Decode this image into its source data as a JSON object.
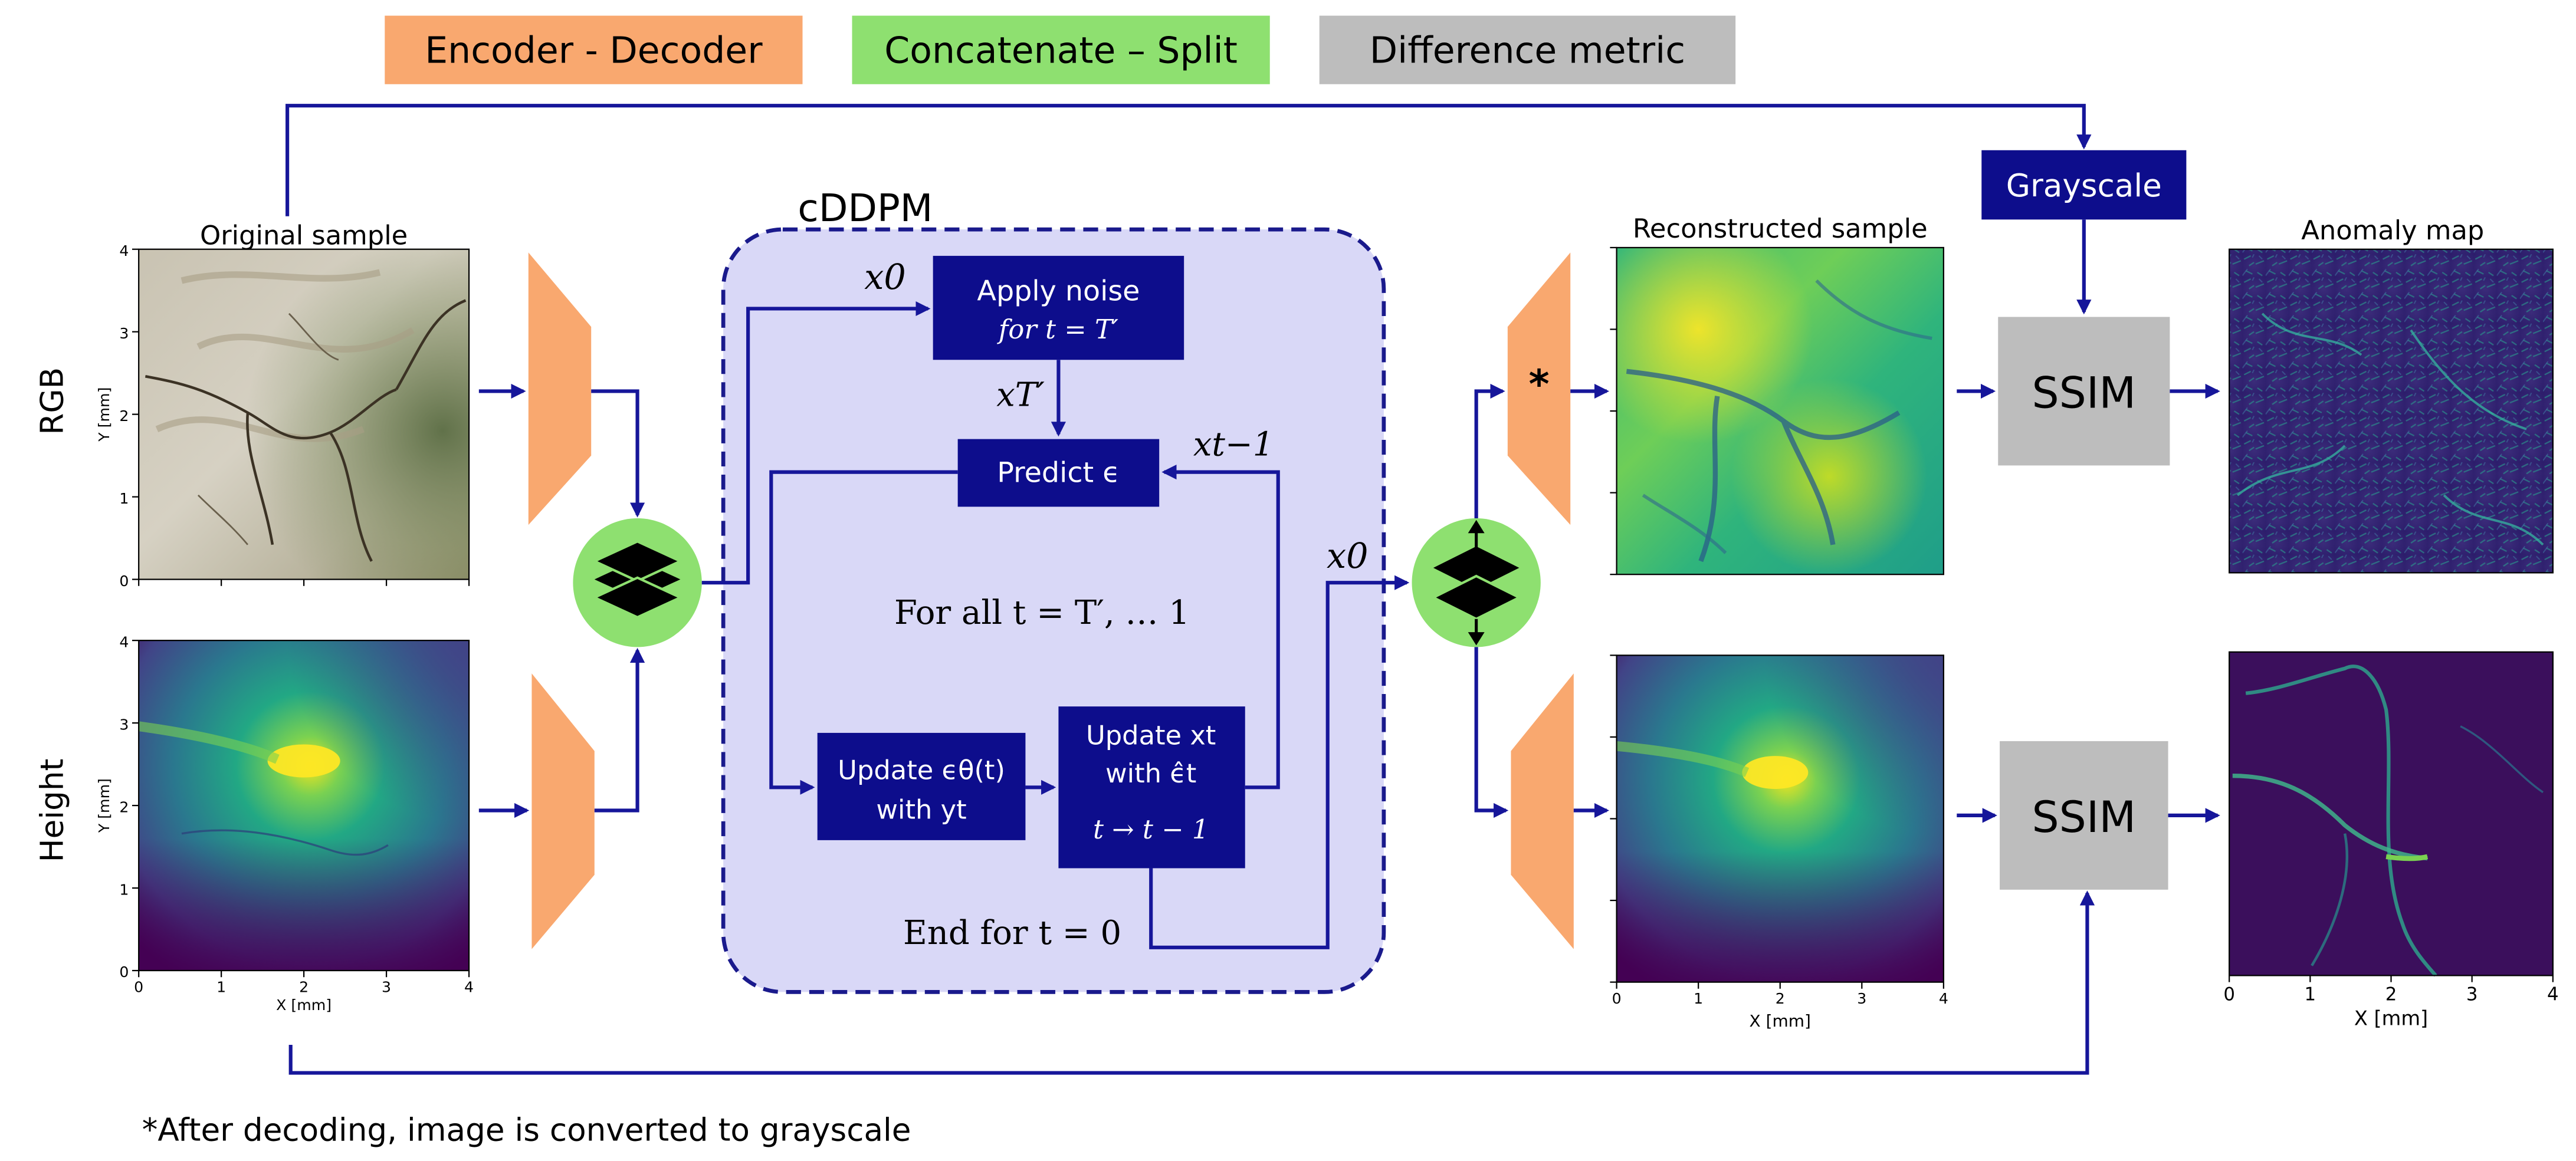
{
  "legend": {
    "encoder_decoder": "Encoder - Decoder",
    "concatenate_split": "Concatenate – Split",
    "difference_metric": "Difference metric"
  },
  "colors": {
    "encoder": "#F9A86F",
    "concat": "#8EE070",
    "metric": "#BDBDBD",
    "navy": "#0D0D8C",
    "arrow": "#16169A",
    "cddpm_fill": "#D9D8F7",
    "cddpm_border": "#1A1A8C"
  },
  "rows": {
    "rgb": "RGB",
    "height": "Height"
  },
  "panels": {
    "original": {
      "title": "Original sample",
      "ylabel": "Y [mm]",
      "xlabel": "X [mm]",
      "yticks": [
        "4",
        "3",
        "2",
        "1",
        "0"
      ],
      "xticks": [
        "0",
        "1",
        "2",
        "3",
        "4"
      ]
    },
    "reconstructed": {
      "title": "Reconstructed sample",
      "xlabel": "X [mm]",
      "xticks": [
        "0",
        "1",
        "2",
        "3",
        "4"
      ]
    },
    "anomaly": {
      "title": "Anomaly map",
      "xlabel": "X [mm]",
      "xticks": [
        "0",
        "1",
        "2",
        "3",
        "4"
      ]
    }
  },
  "cddpm": {
    "title": "cDDPM",
    "apply_noise_l1": "Apply noise",
    "apply_noise_l2": "for t = T′",
    "predict": "Predict ϵ",
    "loop": "For all t = T′, … 1",
    "update_eps_l1": "Update ϵθ(t)",
    "update_eps_l2": "with yt",
    "update_x_l1": "Update xt",
    "update_x_l2": "with ϵ̂t",
    "update_x_l3": "t → t − 1",
    "end_for": "End for t = 0",
    "x0_in": "x0",
    "xT_prime": "xT′",
    "x_t_minus_1": "xt−1",
    "x0_out": "x0"
  },
  "grayscale": "Grayscale",
  "ssim_top": "SSIM",
  "ssim_bottom": "SSIM",
  "asterisk": "*",
  "footnote": "*After decoding, image is converted to grayscale"
}
